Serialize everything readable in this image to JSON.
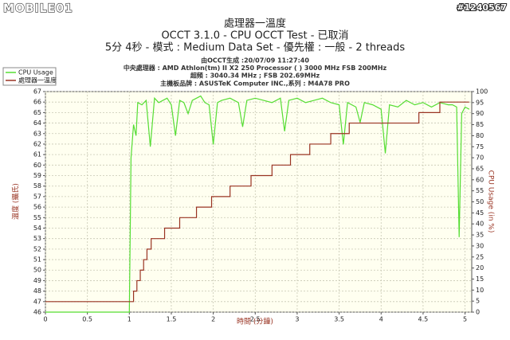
{
  "watermark": "MOBILE01",
  "post_id": "#1240567",
  "chart_data": {
    "type": "line",
    "title": "處理器一溫度",
    "subtitle": "OCCT 3.1.0 - CPU OCCT Test - 已取消",
    "subtitle2": "5分 4秒 - 模式 : Medium Data Set - 優先權 : 一般 - 2 threads",
    "info_lines": [
      "由OCCT生成 :20/07/09 11:27:40",
      "中央處理器 : AMD Athlon(tm) II X2 250 Processor (    ) 3000 MHz FSB 200MHz",
      "超頻 : 3040.34 MHz ; FSB 202.69MHz",
      "主機板品牌 : ASUSTeK Computer INC.,系列 : M4A78 PRO"
    ],
    "xlabel": "時間 (分鐘)",
    "ylabel": "溫度 (攝氏)",
    "y2label": "CPU Usage (in %)",
    "xlim": [
      0,
      5.08
    ],
    "xticks": [
      0,
      0.5,
      1,
      1.5,
      2,
      2.5,
      3,
      3.5,
      4,
      4.5,
      5
    ],
    "ylim": [
      46,
      67
    ],
    "yticks": [
      46,
      47,
      48,
      49,
      50,
      51,
      52,
      53,
      54,
      55,
      56,
      57,
      58,
      59,
      60,
      61,
      62,
      63,
      64,
      65,
      66,
      67
    ],
    "y2lim": [
      0,
      100
    ],
    "y2ticks": [
      0,
      5,
      10,
      15,
      20,
      25,
      30,
      35,
      40,
      45,
      50,
      55,
      60,
      65,
      70,
      75,
      80,
      85,
      90,
      95,
      100
    ],
    "grid": true,
    "series": [
      {
        "name": "CPU Usage",
        "color": "#55dd33",
        "axis": "y2",
        "x": [
          0,
          1.0,
          1.02,
          1.05,
          1.08,
          1.1,
          1.15,
          1.2,
          1.25,
          1.3,
          1.35,
          1.4,
          1.45,
          1.5,
          1.55,
          1.6,
          1.65,
          1.7,
          1.75,
          1.8,
          1.85,
          1.9,
          1.95,
          2.0,
          2.05,
          2.1,
          2.2,
          2.3,
          2.35,
          2.4,
          2.5,
          2.6,
          2.7,
          2.8,
          2.85,
          2.9,
          3.0,
          3.1,
          3.2,
          3.3,
          3.4,
          3.5,
          3.55,
          3.6,
          3.7,
          3.75,
          3.8,
          3.9,
          4.0,
          4.05,
          4.1,
          4.2,
          4.3,
          4.4,
          4.5,
          4.6,
          4.7,
          4.8,
          4.85,
          4.9,
          4.93,
          4.96,
          5.0,
          5.05
        ],
        "values": [
          0,
          0,
          70,
          85,
          80,
          95,
          94,
          96,
          75,
          97,
          95,
          96,
          97,
          94,
          80,
          96,
          95,
          90,
          96,
          97,
          98,
          95,
          94,
          76,
          95,
          96,
          97,
          95,
          84,
          96,
          97,
          96,
          95,
          97,
          82,
          96,
          97,
          95,
          96,
          97,
          95,
          94,
          76,
          95,
          93,
          86,
          95,
          94,
          92,
          72,
          94,
          93,
          96,
          94,
          95,
          93,
          95,
          94,
          94,
          93,
          34,
          90,
          93,
          92
        ]
      },
      {
        "name": "處理器一溫度",
        "color": "#993322",
        "x": [
          0,
          1.05,
          1.05,
          1.09,
          1.09,
          1.13,
          1.13,
          1.17,
          1.17,
          1.21,
          1.21,
          1.26,
          1.26,
          1.42,
          1.42,
          1.6,
          1.6,
          1.8,
          1.8,
          1.98,
          1.98,
          2.2,
          2.2,
          2.45,
          2.45,
          2.7,
          2.7,
          2.92,
          2.92,
          3.15,
          3.15,
          3.4,
          3.4,
          3.62,
          3.62,
          4.45,
          4.45,
          4.7,
          4.7,
          5.05
        ],
        "values": [
          47,
          47,
          48,
          48,
          49,
          49,
          50,
          50,
          51,
          51,
          52,
          52,
          53,
          53,
          54,
          54,
          55,
          55,
          56,
          56,
          57,
          57,
          58,
          58,
          59,
          59,
          60,
          60,
          61,
          61,
          62,
          62,
          63,
          63,
          64,
          64,
          65,
          65,
          66,
          66
        ]
      }
    ]
  }
}
